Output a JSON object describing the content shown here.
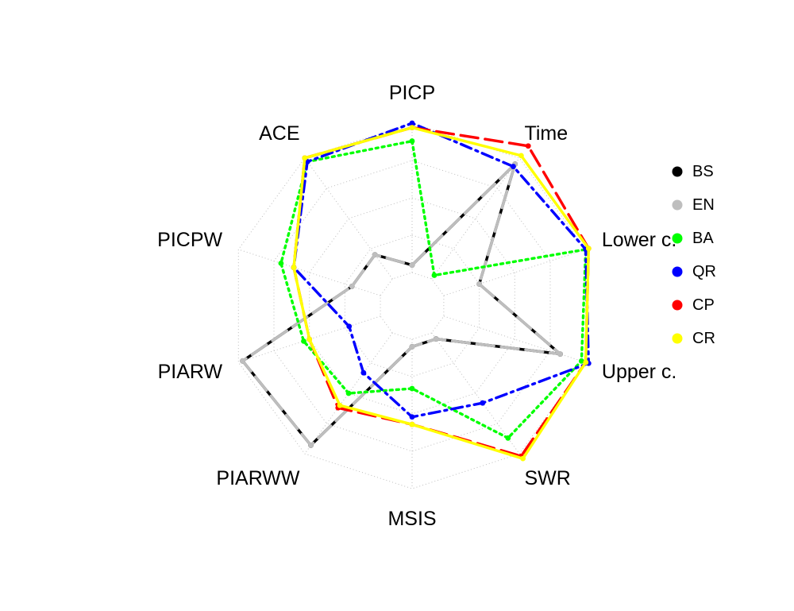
{
  "chart_data": {
    "type": "radar",
    "axes": [
      "PICP",
      "Time",
      "Lower c.",
      "Upper c.",
      "SWR",
      "MSIS",
      "PIARWW",
      "PIARW",
      "PICPW",
      "ACE"
    ],
    "rlim": [
      0,
      1
    ],
    "grid": true,
    "legend_position": "right",
    "series": [
      {
        "name": "BS",
        "color": "#000000",
        "dash": "solid",
        "values": [
          0.05,
          0.95,
          0.25,
          0.82,
          0.05,
          0.05,
          0.93,
          0.97,
          0.2,
          0.2
        ]
      },
      {
        "name": "EN",
        "color": "#BEBEBE",
        "dash": "long-dash",
        "values": [
          0.05,
          0.95,
          0.25,
          0.82,
          0.05,
          0.05,
          0.93,
          0.97,
          0.2,
          0.2
        ]
      },
      {
        "name": "BA",
        "color": "#00FF00",
        "dash": "dotted",
        "values": [
          0.88,
          0.03,
          1.0,
          0.97,
          0.87,
          0.33,
          0.5,
          0.54,
          0.7,
          0.97
        ]
      },
      {
        "name": "QR",
        "color": "#0000FF",
        "dash": "dot-dash",
        "values": [
          1.0,
          0.93,
          1.0,
          1.02,
          0.58,
          0.52,
          0.33,
          0.22,
          0.61,
          0.97
        ]
      },
      {
        "name": "CP",
        "color": "#FF0000",
        "dash": "long-dash",
        "values": [
          0.97,
          1.1,
          1.02,
          1.0,
          1.02,
          0.57,
          0.62,
          0.5,
          0.61,
          1.0
        ]
      },
      {
        "name": "CR",
        "color": "#FFFF00",
        "dash": "solid",
        "values": [
          0.97,
          1.02,
          1.02,
          1.0,
          1.04,
          0.57,
          0.6,
          0.5,
          0.61,
          1.0
        ]
      }
    ]
  }
}
